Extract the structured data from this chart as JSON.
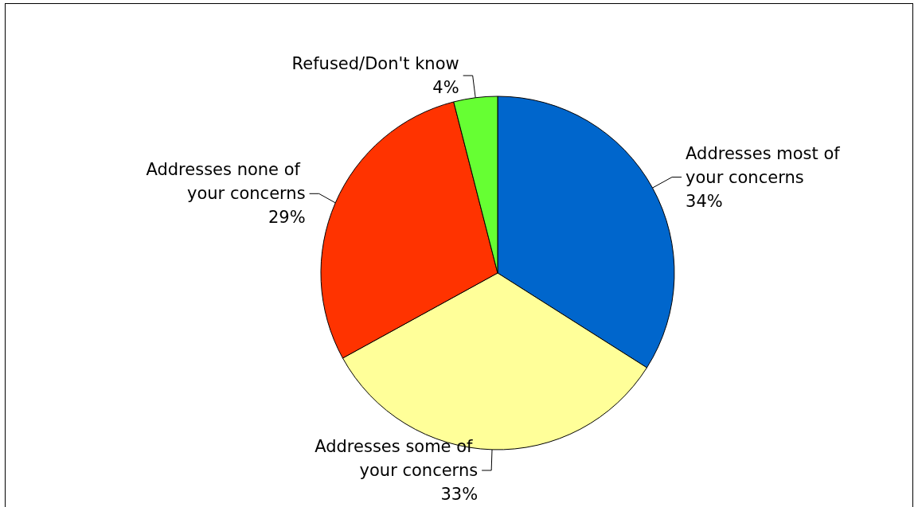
{
  "chart_data": {
    "type": "pie",
    "categories": [
      "Addresses most of your concerns",
      "Addresses some of your concerns",
      "Addresses none of your concerns",
      "Refused/Don't know"
    ],
    "values": [
      34,
      33,
      29,
      4
    ],
    "colors": [
      "#0066cc",
      "#ffff99",
      "#ff3300",
      "#66ff33"
    ],
    "value_labels": [
      "34%",
      "33%",
      "29%",
      "4%"
    ],
    "legend": false
  }
}
